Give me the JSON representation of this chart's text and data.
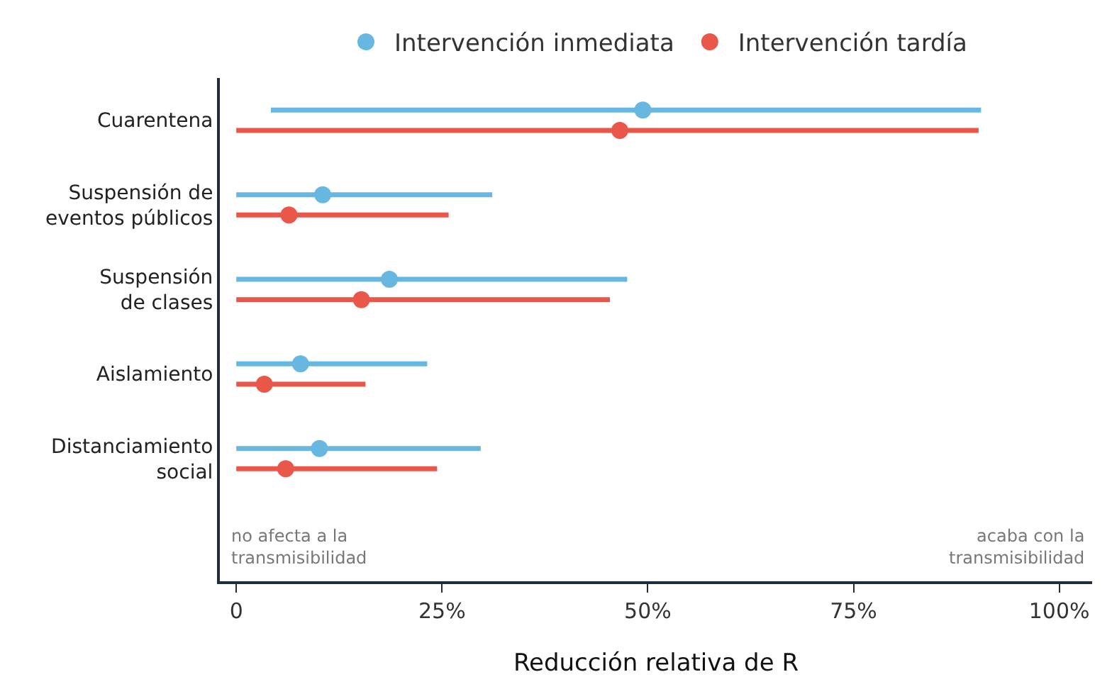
{
  "chart_data": {
    "type": "scatter",
    "orientation": "horizontal",
    "categories": [
      "Cuarentena",
      "Suspensión de\neventos públicos",
      "Suspensión\nde clases",
      "Aislamiento",
      "Distanciamiento\nsocial"
    ],
    "series": [
      {
        "name": "Intervención inmediata",
        "color": "#67b7e1",
        "values": [
          49.4,
          10.5,
          18.6,
          7.8,
          10.1
        ],
        "errors": [
          [
            4.2,
            90.5
          ],
          [
            0,
            31.1
          ],
          [
            0,
            47.5
          ],
          [
            0,
            23.2
          ],
          [
            0,
            29.7
          ]
        ]
      },
      {
        "name": "Intervención tardía",
        "color": "#e8574a",
        "values": [
          46.6,
          6.4,
          15.2,
          3.4,
          6.0
        ],
        "errors": [
          [
            0,
            90.2
          ],
          [
            0,
            25.8
          ],
          [
            0,
            45.4
          ],
          [
            0,
            15.7
          ],
          [
            0,
            24.4
          ]
        ]
      }
    ],
    "xlabel": "Reducción relativa de R",
    "xlim": [
      -2,
      104
    ],
    "xticks": [
      0,
      {
        "value": 25,
        "label": "25%"
      },
      {
        "value": 50,
        "label": "50%"
      },
      {
        "value": 75,
        "label": "75%"
      },
      {
        "value": 100,
        "label": "100%"
      }
    ],
    "annotations": [
      "no afecta a la\ntransmisibilidad",
      "acaba con la\ntransmisibilidad"
    ],
    "legend": "top",
    "marker": "circle"
  }
}
